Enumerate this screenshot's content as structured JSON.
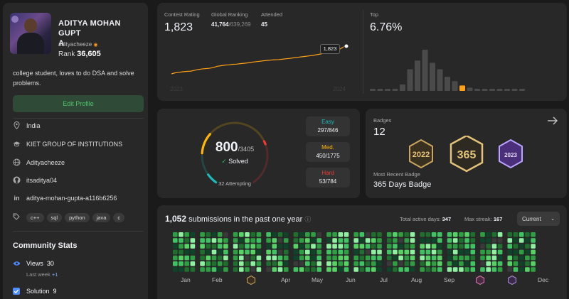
{
  "profile": {
    "name": "ADITYA MOHAN GUPTA",
    "name_line1": "ADITYA MOHAN GUPT",
    "name_line2": "A",
    "username": "adityacheeze",
    "rank_label": "Rank",
    "rank_value": "36,605",
    "bio": "college student, loves to do DSA and solve problems.",
    "edit_label": "Edit Profile",
    "location": "India",
    "institution": "KIET GROUP OF INSTITUTIONS",
    "website": "Adityacheeze",
    "github": "itsaditya04",
    "linkedin": "aditya-mohan-gupta-a116b6256",
    "skills": [
      "c++",
      "sql",
      "python",
      "java",
      "c"
    ]
  },
  "community": {
    "title": "Community Stats",
    "views_label": "Views",
    "views_value": "30",
    "views_sub": "Last week",
    "views_delta": "+1",
    "solution_label": "Solution",
    "solution_value": "9"
  },
  "contest": {
    "rating_label": "Contest Rating",
    "rating_value": "1,823",
    "global_label": "Global Ranking",
    "global_value": "41,764",
    "global_total": "/639,269",
    "attended_label": "Attended",
    "attended_value": "45",
    "tooltip": "1,823",
    "year_start": "2023",
    "year_end": "2024",
    "top_label": "Top",
    "top_value": "6.76%",
    "histogram": [
      2,
      2,
      2,
      2,
      6,
      20,
      28,
      38,
      26,
      20,
      13,
      9,
      5,
      3,
      2,
      2,
      2,
      2,
      2,
      2,
      2
    ],
    "highlight_index": 12,
    "rating_series": [
      1440,
      1455,
      1462,
      1470,
      1475,
      1478,
      1490,
      1502,
      1510,
      1515,
      1520,
      1530,
      1548,
      1556,
      1565,
      1568,
      1575,
      1578,
      1585,
      1590,
      1596,
      1605,
      1612,
      1618,
      1625,
      1630,
      1636,
      1640,
      1642,
      1648,
      1655,
      1660,
      1668,
      1675,
      1682,
      1688,
      1695,
      1702,
      1712,
      1722,
      1734,
      1745,
      1760,
      1772,
      1790,
      1823
    ],
    "accent": "#ffa116"
  },
  "solved": {
    "count": "800",
    "total": "/3405",
    "label": "Solved",
    "attempting": "32 Attempting",
    "easy_label": "Easy",
    "easy_value": "297/846",
    "easy_color": "#1cbaba",
    "easy_frac": 0.351,
    "med_label": "Med.",
    "med_value": "450/1775",
    "med_color": "#ffb700",
    "med_frac": 0.254,
    "hard_label": "Hard",
    "hard_value": "53/784",
    "hard_color": "#f63737",
    "hard_frac": 0.068
  },
  "badges": {
    "label": "Badges",
    "count": "12",
    "recent_label": "Most Recent Badge",
    "recent_name": "365 Days Badge",
    "badge_years": [
      "2022",
      "2023"
    ]
  },
  "submissions": {
    "count": "1,052",
    "text": "submissions in the past one year",
    "active_label": "Total active days:",
    "active_value": "347",
    "streak_label": "Max streak:",
    "streak_value": "167",
    "range": "Current",
    "months": [
      "Jan",
      "Feb",
      "Apr",
      "May",
      "Jun",
      "Jul",
      "Aug",
      "Sep",
      "Dec"
    ]
  }
}
